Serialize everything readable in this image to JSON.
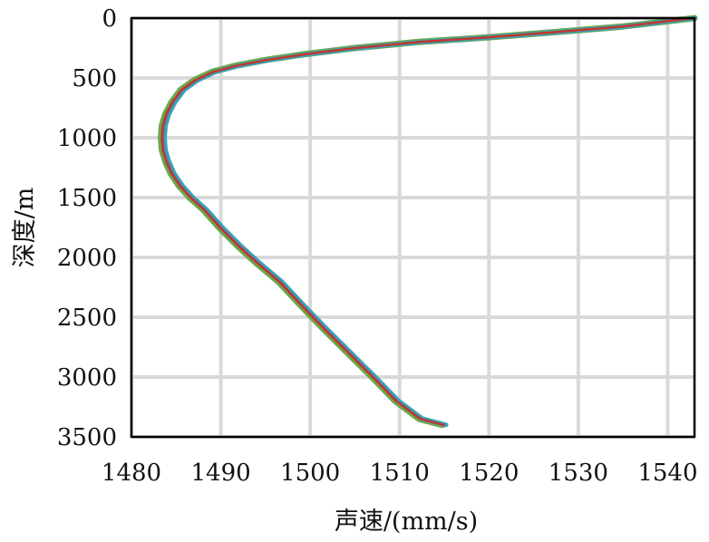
{
  "chart_data": {
    "type": "line",
    "title": "",
    "xlabel": "声速/(mm/s)",
    "ylabel": "深度/m",
    "xlim": [
      1480,
      1543
    ],
    "ylim": [
      0,
      3500
    ],
    "y_inverted": true,
    "grid": true,
    "x_ticks": [
      1480,
      1490,
      1500,
      1510,
      1520,
      1530,
      1540
    ],
    "y_ticks": [
      0,
      500,
      1000,
      1500,
      2000,
      2500,
      3000,
      3500
    ],
    "series": [
      {
        "color": "#6aa84f",
        "x": [
          1543.0,
          1535.0,
          1527.0,
          1520.0,
          1512.0,
          1505.0,
          1499.5,
          1495.0,
          1491.5,
          1489.0,
          1487.0,
          1485.5,
          1484.5,
          1483.8,
          1483.4,
          1483.3,
          1483.4,
          1483.8,
          1484.4,
          1485.3,
          1486.5,
          1488.0,
          1489.8,
          1491.8,
          1494.0,
          1496.4,
          1498.9,
          1501.5,
          1504.2,
          1506.9,
          1509.5,
          1512.2,
          1514.8
        ],
        "y": [
          0,
          70,
          120,
          160,
          200,
          250,
          300,
          350,
          400,
          450,
          520,
          600,
          700,
          800,
          900,
          1000,
          1100,
          1200,
          1300,
          1400,
          1500,
          1600,
          1750,
          1900,
          2050,
          2200,
          2400,
          2600,
          2800,
          3000,
          3200,
          3350,
          3400
        ]
      },
      {
        "color": "#3ba3b5",
        "x": [
          1543.0,
          1535.2,
          1527.3,
          1520.3,
          1512.4,
          1505.3,
          1499.9,
          1495.4,
          1491.9,
          1489.4,
          1487.4,
          1485.9,
          1484.9,
          1484.2,
          1483.8,
          1483.7,
          1483.8,
          1484.2,
          1484.8,
          1485.7,
          1486.9,
          1488.4,
          1490.2,
          1492.2,
          1494.4,
          1496.8,
          1499.3,
          1501.9,
          1504.6,
          1507.3,
          1509.9,
          1512.6,
          1515.2
        ],
        "y": [
          0,
          70,
          120,
          160,
          200,
          250,
          300,
          350,
          400,
          450,
          520,
          600,
          700,
          800,
          900,
          1000,
          1100,
          1200,
          1300,
          1400,
          1500,
          1600,
          1750,
          1900,
          2050,
          2200,
          2400,
          2600,
          2800,
          3000,
          3200,
          3350,
          3400
        ]
      },
      {
        "color": "#6b5fa8",
        "x": [
          1542.9,
          1535.0,
          1527.1,
          1520.1,
          1512.2,
          1505.1,
          1499.7,
          1495.2,
          1491.7,
          1489.2,
          1487.2,
          1485.7,
          1484.7,
          1484.0,
          1483.6,
          1483.5,
          1483.6,
          1484.0,
          1484.6,
          1485.5,
          1486.7,
          1488.2,
          1490.0,
          1492.0,
          1494.2,
          1496.6,
          1499.1,
          1501.7,
          1504.4,
          1507.1,
          1509.7,
          1512.4,
          1515.0
        ],
        "y": [
          0,
          70,
          120,
          160,
          200,
          250,
          300,
          350,
          400,
          450,
          520,
          600,
          700,
          800,
          900,
          1000,
          1100,
          1200,
          1300,
          1400,
          1500,
          1600,
          1750,
          1900,
          2050,
          2200,
          2400,
          2600,
          2800,
          3000,
          3200,
          3350,
          3400
        ]
      },
      {
        "color": "#c0392b",
        "x": [
          1542.8,
          1534.9,
          1527.0,
          1520.0,
          1512.1,
          1505.0,
          1499.6,
          1495.1,
          1491.6,
          1489.1,
          1487.1,
          1485.6,
          1484.6,
          1483.9,
          1483.5,
          1483.4,
          1483.5,
          1483.9,
          1484.5,
          1485.4,
          1486.6,
          1488.1,
          1489.9,
          1491.9,
          1494.1,
          1496.5,
          1499.0,
          1501.6,
          1504.3,
          1507.0,
          1509.6,
          1512.3,
          1514.9
        ],
        "y": [
          0,
          70,
          120,
          160,
          200,
          250,
          300,
          350,
          400,
          450,
          520,
          600,
          700,
          800,
          900,
          1000,
          1100,
          1200,
          1300,
          1400,
          1500,
          1600,
          1750,
          1900,
          2050,
          2200,
          2400,
          2600,
          2800,
          3000,
          3200,
          3350,
          3400
        ]
      }
    ]
  }
}
